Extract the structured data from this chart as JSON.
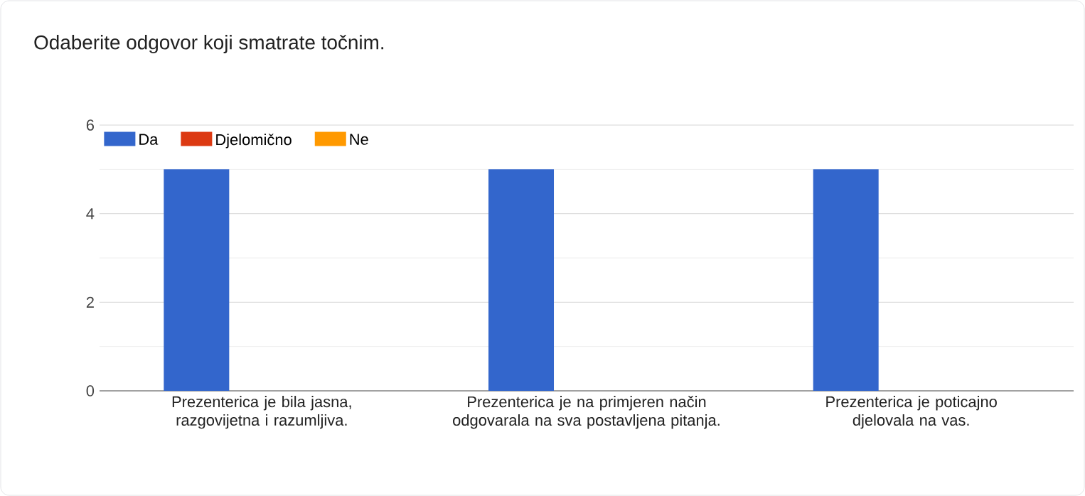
{
  "chart_data": {
    "type": "bar",
    "title": "Odaberite odgovor koji smatrate točnim.",
    "categories": [
      "Prezenterica je bila jasna, razgovijetna i razumljiva.",
      "Prezenterica je na primjeren način odgovarala na sva postavljena pitanja.",
      "Prezenterica je poticajno djelovala na vas."
    ],
    "series": [
      {
        "name": "Da",
        "color": "#3366cc",
        "values": [
          5,
          5,
          5
        ]
      },
      {
        "name": "Djelomično",
        "color": "#dc3912",
        "values": [
          0,
          0,
          0
        ]
      },
      {
        "name": "Ne",
        "color": "#ff9900",
        "values": [
          0,
          0,
          0
        ]
      }
    ],
    "ylim": [
      0,
      6
    ],
    "yticks": [
      0,
      {
        "value": 1,
        "label": null
      },
      2,
      {
        "value": 3,
        "label": null
      },
      4,
      {
        "value": 5,
        "label": null
      },
      6
    ],
    "grid": "y",
    "legend": "top left"
  }
}
